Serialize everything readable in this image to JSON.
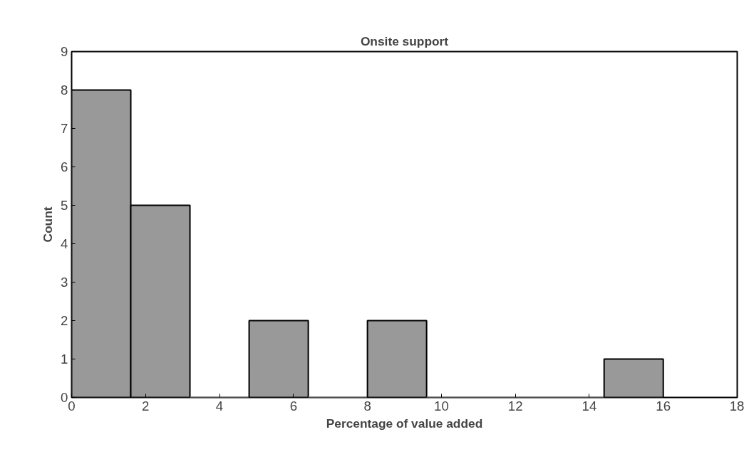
{
  "chart_data": {
    "type": "histogram",
    "title": "Onsite support",
    "xlabel": "Percentage of value added",
    "ylabel": "Count",
    "bins": [
      0,
      1.6,
      3.2,
      4.8,
      6.4,
      8.0,
      9.6,
      11.2,
      12.8,
      14.4,
      16.0
    ],
    "values": [
      8,
      5,
      0,
      2,
      0,
      2,
      0,
      0,
      0,
      1
    ],
    "color": "#999999",
    "xlim": [
      0,
      18
    ],
    "xticks": [
      0,
      2,
      4,
      6,
      8,
      10,
      12,
      14,
      16,
      18
    ],
    "ylim": [
      0,
      9
    ],
    "yticks": [
      0,
      1,
      2,
      3,
      4,
      5,
      6,
      7,
      8,
      9
    ],
    "grid": false
  }
}
